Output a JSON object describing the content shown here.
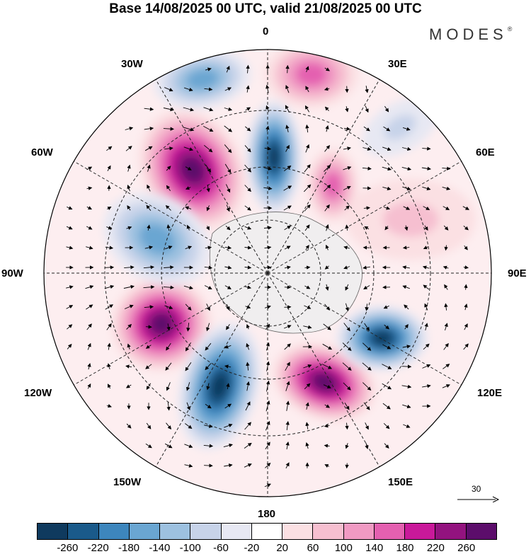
{
  "title": "Base 14/08/2025 00 UTC, valid 21/08/2025 00 UTC",
  "brand": "MODES",
  "brand_mark": "®",
  "longitude_labels": {
    "n": "0",
    "ne30": "30E",
    "ne60": "60E",
    "e": "90E",
    "se120": "120E",
    "se150": "150E",
    "s": "180",
    "sw150": "150W",
    "sw120": "120W",
    "w": "90W",
    "nw60": "60W",
    "nw30": "30W"
  },
  "reference_vector": "30",
  "colorbar": {
    "colors": [
      "#0f3a5e",
      "#1a5a8a",
      "#3d86bd",
      "#6aa6d2",
      "#9dc1e0",
      "#c7d3e9",
      "#e7e8f3",
      "#ffffff",
      "#fbe0e3",
      "#f6bfd0",
      "#f09ac3",
      "#e460b0",
      "#c9199a",
      "#93137f",
      "#5c0d6b"
    ],
    "ticks": [
      "-260",
      "-220",
      "-180",
      "-140",
      "-100",
      "-60",
      "-20",
      "20",
      "60",
      "100",
      "140",
      "180",
      "220",
      "260"
    ]
  },
  "anomaly_centers": [
    {
      "sign": "positive",
      "strength": "strong"
    },
    {
      "sign": "negative",
      "strength": "strong"
    },
    {
      "sign": "positive",
      "strength": "strong"
    },
    {
      "sign": "negative",
      "strength": "strong"
    },
    {
      "sign": "positive",
      "strength": "strong"
    },
    {
      "sign": "negative",
      "strength": "strong"
    },
    {
      "sign": "positive",
      "strength": "moderate"
    },
    {
      "sign": "negative",
      "strength": "moderate"
    },
    {
      "sign": "positive",
      "strength": "moderate"
    },
    {
      "sign": "negative",
      "strength": "moderate"
    },
    {
      "sign": "negative",
      "strength": "weak"
    },
    {
      "sign": "positive",
      "strength": "weak"
    }
  ]
}
